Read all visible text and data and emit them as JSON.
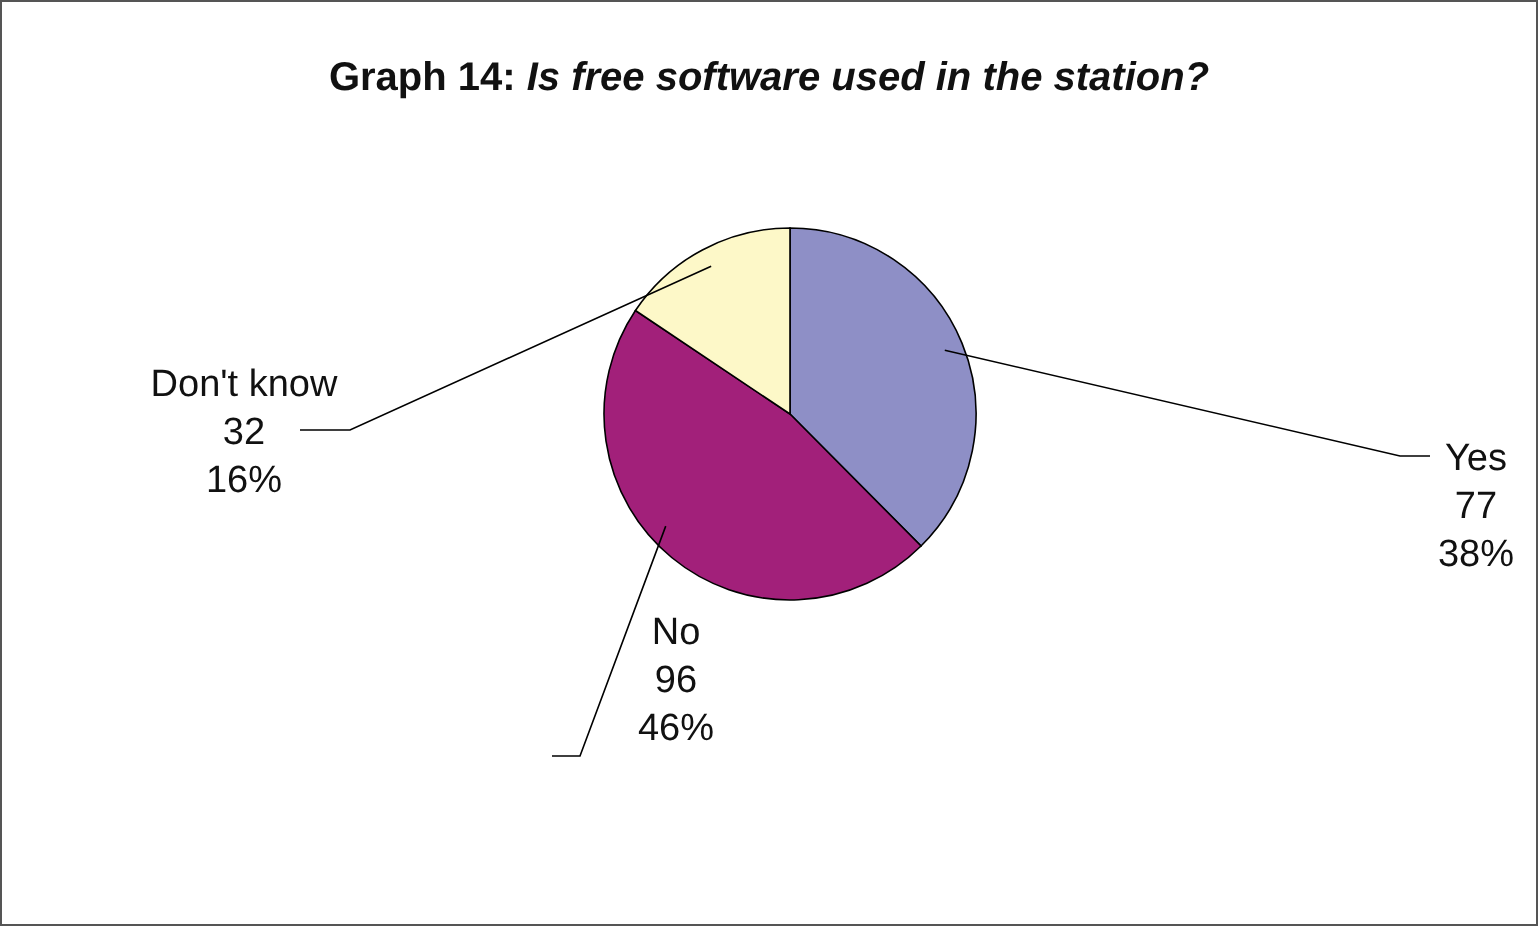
{
  "chart_data": {
    "type": "pie",
    "title": "Graph 14: Is free software used in the station?",
    "categories": [
      "Yes",
      "No",
      "Don't know"
    ],
    "values": [
      77,
      96,
      32
    ],
    "value_labels": [
      "77\n38%",
      "96\n46%",
      "32\n16%"
    ],
    "colors": [
      "#8e8fc6",
      "#a2207a",
      "#fdf8c8"
    ]
  }
}
